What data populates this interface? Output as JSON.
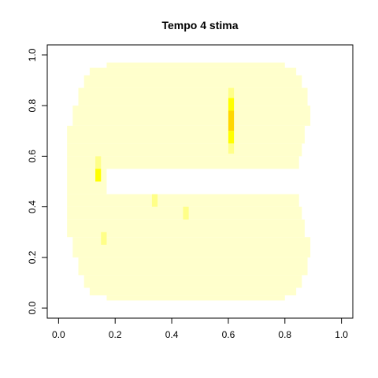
{
  "chart_data": {
    "type": "heatmap",
    "title": "Tempo 4 stima",
    "xlabel": "",
    "ylabel": "",
    "xlim": [
      -0.04,
      1.04
    ],
    "ylim": [
      -0.04,
      1.04
    ],
    "x_ticks": [
      0.0,
      0.2,
      0.4,
      0.6,
      0.8,
      1.0
    ],
    "y_ticks": [
      0.0,
      0.2,
      0.4,
      0.6,
      0.8,
      1.0
    ],
    "x_tick_labels": [
      "0.0",
      "0.2",
      "0.4",
      "0.6",
      "0.8",
      "1.0"
    ],
    "y_tick_labels": [
      "0.0",
      "0.2",
      "0.4",
      "0.6",
      "0.8",
      "1.0"
    ],
    "grid": false,
    "colors": {
      "base": "#ffffcc",
      "medium": "#ffff88",
      "high": "#ffff00",
      "peak": "#ffd700"
    },
    "base_rows": [
      {
        "y": [
          0.95,
          0.97
        ],
        "x": [
          0.17,
          0.8
        ]
      },
      {
        "y": [
          0.92,
          0.95
        ],
        "x": [
          0.11,
          0.84
        ]
      },
      {
        "y": [
          0.87,
          0.92
        ],
        "x": [
          0.09,
          0.86
        ]
      },
      {
        "y": [
          0.8,
          0.87
        ],
        "x": [
          0.07,
          0.88
        ]
      },
      {
        "y": [
          0.72,
          0.8
        ],
        "x": [
          0.05,
          0.89
        ]
      },
      {
        "y": [
          0.65,
          0.72
        ],
        "x": [
          0.03,
          0.87
        ]
      },
      {
        "y": [
          0.6,
          0.65
        ],
        "x": [
          0.03,
          0.86
        ]
      },
      {
        "y": [
          0.55,
          0.6
        ],
        "x": [
          0.03,
          0.85
        ]
      },
      {
        "y": [
          0.45,
          0.55
        ],
        "x": [
          0.03,
          0.17
        ]
      },
      {
        "y": [
          0.4,
          0.45
        ],
        "x": [
          0.03,
          0.85
        ]
      },
      {
        "y": [
          0.35,
          0.4
        ],
        "x": [
          0.03,
          0.86
        ]
      },
      {
        "y": [
          0.28,
          0.35
        ],
        "x": [
          0.03,
          0.87
        ]
      },
      {
        "y": [
          0.2,
          0.28
        ],
        "x": [
          0.05,
          0.89
        ]
      },
      {
        "y": [
          0.13,
          0.2
        ],
        "x": [
          0.07,
          0.88
        ]
      },
      {
        "y": [
          0.08,
          0.13
        ],
        "x": [
          0.09,
          0.86
        ]
      },
      {
        "y": [
          0.05,
          0.08
        ],
        "x": [
          0.11,
          0.84
        ]
      },
      {
        "y": [
          0.03,
          0.05
        ],
        "x": [
          0.17,
          0.8
        ]
      }
    ],
    "hotspots": [
      {
        "x": [
          0.6,
          0.62
        ],
        "y": [
          0.83,
          0.87
        ],
        "level": "medium"
      },
      {
        "x": [
          0.6,
          0.62
        ],
        "y": [
          0.78,
          0.83
        ],
        "level": "high"
      },
      {
        "x": [
          0.6,
          0.62
        ],
        "y": [
          0.7,
          0.78
        ],
        "level": "peak"
      },
      {
        "x": [
          0.6,
          0.62
        ],
        "y": [
          0.65,
          0.7
        ],
        "level": "high"
      },
      {
        "x": [
          0.6,
          0.62
        ],
        "y": [
          0.61,
          0.65
        ],
        "level": "medium"
      },
      {
        "x": [
          0.13,
          0.15
        ],
        "y": [
          0.55,
          0.6
        ],
        "level": "medium"
      },
      {
        "x": [
          0.13,
          0.15
        ],
        "y": [
          0.5,
          0.55
        ],
        "level": "high"
      },
      {
        "x": [
          0.33,
          0.35
        ],
        "y": [
          0.4,
          0.45
        ],
        "level": "medium"
      },
      {
        "x": [
          0.44,
          0.46
        ],
        "y": [
          0.35,
          0.4
        ],
        "level": "medium"
      },
      {
        "x": [
          0.15,
          0.17
        ],
        "y": [
          0.25,
          0.3
        ],
        "level": "medium"
      }
    ]
  }
}
